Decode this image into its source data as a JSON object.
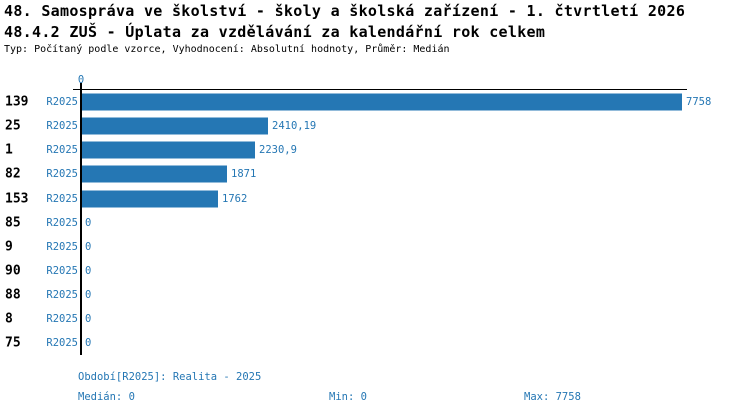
{
  "header": {
    "title_line1": "48. Samospráva ve školství - školy a školská zařízení - 1. čtvrtletí 2026",
    "title_line2": "48.4.2 ZUŠ - Úplata za vzdělávání za kalendářní rok celkem",
    "subtitle": "Typ: Počítaný podle vzorce, Vyhodnocení: Absolutní hodnoty, Průměr: Medián"
  },
  "chart_data": {
    "type": "bar",
    "orientation": "horizontal",
    "title": "48.4.2 ZUŠ - Úplata za vzdělávání za kalendářní rok celkem",
    "axis_zero_label": "0",
    "xlim": [
      0,
      7758
    ],
    "grid": false,
    "value_labels": true,
    "categories": [
      "139",
      "25",
      "1",
      "82",
      "153",
      "85",
      "9",
      "90",
      "88",
      "8",
      "75"
    ],
    "series": [
      {
        "name": "R2025",
        "values": [
          7758,
          2410.19,
          2230.9,
          1871,
          1762,
          0,
          0,
          0,
          0,
          0,
          0
        ]
      }
    ],
    "rows": [
      {
        "id": "139",
        "period": "R2025",
        "value": 7758,
        "label": "7758"
      },
      {
        "id": "25",
        "period": "R2025",
        "value": 2410.19,
        "label": "2410,19"
      },
      {
        "id": "1",
        "period": "R2025",
        "value": 2230.9,
        "label": "2230,9"
      },
      {
        "id": "82",
        "period": "R2025",
        "value": 1871,
        "label": "1871"
      },
      {
        "id": "153",
        "period": "R2025",
        "value": 1762,
        "label": "1762"
      },
      {
        "id": "85",
        "period": "R2025",
        "value": 0,
        "label": "0"
      },
      {
        "id": "9",
        "period": "R2025",
        "value": 0,
        "label": "0"
      },
      {
        "id": "90",
        "period": "R2025",
        "value": 0,
        "label": "0"
      },
      {
        "id": "88",
        "period": "R2025",
        "value": 0,
        "label": "0"
      },
      {
        "id": "8",
        "period": "R2025",
        "value": 0,
        "label": "0"
      },
      {
        "id": "75",
        "period": "R2025",
        "value": 0,
        "label": "0"
      }
    ]
  },
  "footer": {
    "period_label": "Období[R2025]: Realita - 2025",
    "median_label": "Medián: 0",
    "min_label": "Min: 0",
    "max_label": "Max: 7758"
  },
  "colors": {
    "bar": "#2577b4",
    "text_blue": "#2577b4",
    "axis": "#000000",
    "title_text": "#000000"
  }
}
